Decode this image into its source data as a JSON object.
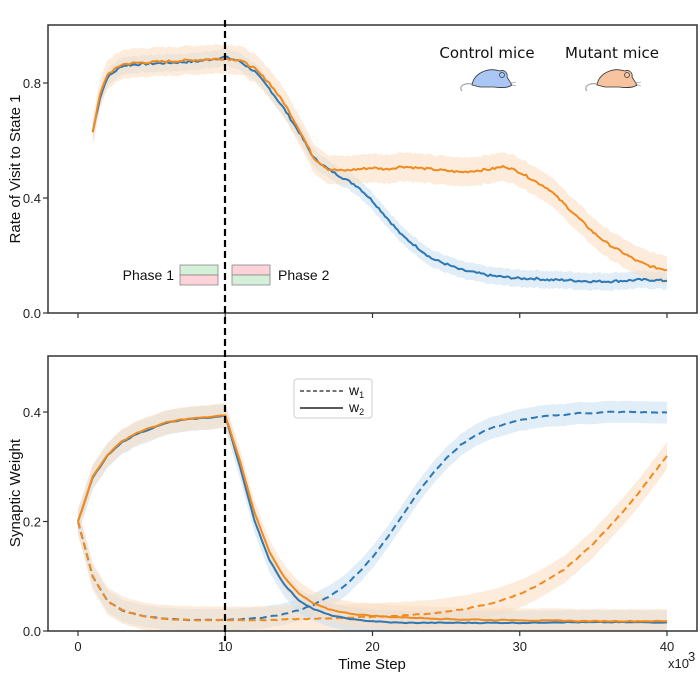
{
  "colors": {
    "control": "#2e78b4",
    "mutant": "#f08a1e",
    "control_band": "#c9def0",
    "mutant_band": "#fcdcc0",
    "phase_green": "#d4f0d8",
    "phase_red": "#fbd3d8",
    "divider": "#000000"
  },
  "chart_data": [
    {
      "type": "line",
      "panel": "top",
      "title": "",
      "xlabel": "",
      "ylabel": "Rate of Visit to State 1",
      "xlim": [
        -2,
        42
      ],
      "ylim": [
        0,
        1.0
      ],
      "yticks": [
        0.0,
        0.4,
        0.8
      ],
      "ytick_labels": [
        "0.0",
        "0.4",
        "0.8"
      ],
      "xticks": [
        0,
        10,
        20,
        30,
        40
      ],
      "grid": false,
      "vline_x": 10,
      "annotations": {
        "mice_legend": [
          {
            "label": "Control mice",
            "icon": "mouse-blue-icon"
          },
          {
            "label": "Mutant mice",
            "icon": "mouse-orange-icon"
          }
        ],
        "phase_legend": [
          {
            "label": "Phase 1",
            "top": "green",
            "bottom": "red"
          },
          {
            "label": "Phase 2",
            "top": "red",
            "bottom": "green"
          }
        ]
      },
      "x": [
        1,
        1.5,
        2,
        3,
        4,
        6,
        8,
        10,
        11,
        12,
        13,
        14,
        15,
        16,
        17,
        18,
        19,
        20,
        21,
        22,
        24,
        26,
        28,
        29,
        30,
        31,
        32,
        33,
        34,
        35,
        36,
        37,
        38,
        39,
        40
      ],
      "series": [
        {
          "name": "Control mice",
          "color_key": "control",
          "values": [
            0.63,
            0.75,
            0.82,
            0.86,
            0.865,
            0.87,
            0.875,
            0.89,
            0.875,
            0.84,
            0.78,
            0.71,
            0.63,
            0.54,
            0.5,
            0.47,
            0.44,
            0.39,
            0.33,
            0.27,
            0.19,
            0.15,
            0.13,
            0.125,
            0.12,
            0.12,
            0.115,
            0.115,
            0.112,
            0.11,
            0.11,
            0.112,
            0.115,
            0.115,
            0.112
          ],
          "band": 0.03
        },
        {
          "name": "Mutant mice",
          "color_key": "mutant",
          "values": [
            0.63,
            0.76,
            0.83,
            0.865,
            0.87,
            0.875,
            0.88,
            0.885,
            0.88,
            0.85,
            0.8,
            0.73,
            0.64,
            0.54,
            0.5,
            0.495,
            0.5,
            0.505,
            0.5,
            0.51,
            0.5,
            0.49,
            0.5,
            0.51,
            0.49,
            0.46,
            0.43,
            0.38,
            0.33,
            0.28,
            0.24,
            0.21,
            0.18,
            0.16,
            0.15
          ],
          "band": 0.05
        }
      ]
    },
    {
      "type": "line",
      "panel": "bottom",
      "title": "",
      "xlabel": "Time Step",
      "x_multiplier_label": "x10",
      "x_multiplier_exp": "3",
      "ylabel": "Synaptic Weight",
      "xlim": [
        -2,
        42
      ],
      "ylim": [
        0,
        0.5
      ],
      "yticks": [
        0.0,
        0.2,
        0.4
      ],
      "ytick_labels": [
        "0.0",
        "0.2",
        "0.4"
      ],
      "xticks": [
        0,
        10,
        20,
        30,
        40
      ],
      "xtick_labels": [
        "0",
        "10",
        "20",
        "30",
        "40"
      ],
      "grid": false,
      "vline_x": 10,
      "legend": {
        "placement": "upper-center",
        "entries": [
          {
            "label_base": "w",
            "label_sub": "1",
            "style": "dashed"
          },
          {
            "label_base": "w",
            "label_sub": "2",
            "style": "solid"
          }
        ]
      },
      "x": [
        0,
        1,
        2,
        3,
        4,
        5,
        6,
        7,
        8,
        9,
        10,
        11,
        12,
        13,
        14,
        15,
        16,
        17,
        18,
        19,
        20,
        21,
        22,
        23,
        24,
        25,
        26,
        27,
        28,
        29,
        30,
        31,
        32,
        33,
        34,
        35,
        36,
        37,
        38,
        39,
        40
      ],
      "series": [
        {
          "name": "Control w1",
          "color_key": "control",
          "style": "dashed",
          "band": 0.02,
          "values": [
            0.2,
            0.1,
            0.055,
            0.038,
            0.03,
            0.025,
            0.022,
            0.021,
            0.02,
            0.02,
            0.02,
            0.021,
            0.023,
            0.026,
            0.031,
            0.038,
            0.048,
            0.062,
            0.08,
            0.105,
            0.135,
            0.17,
            0.21,
            0.25,
            0.285,
            0.315,
            0.34,
            0.358,
            0.37,
            0.378,
            0.385,
            0.39,
            0.393,
            0.395,
            0.398,
            0.398,
            0.4,
            0.4,
            0.4,
            0.399,
            0.399
          ]
        },
        {
          "name": "Mutant w1",
          "color_key": "mutant",
          "style": "dashed",
          "band": 0.025,
          "values": [
            0.2,
            0.1,
            0.055,
            0.038,
            0.03,
            0.025,
            0.022,
            0.021,
            0.02,
            0.02,
            0.02,
            0.02,
            0.02,
            0.02,
            0.021,
            0.022,
            0.022,
            0.023,
            0.024,
            0.025,
            0.026,
            0.027,
            0.028,
            0.03,
            0.032,
            0.035,
            0.039,
            0.044,
            0.05,
            0.058,
            0.068,
            0.08,
            0.095,
            0.112,
            0.135,
            0.16,
            0.188,
            0.218,
            0.25,
            0.285,
            0.32
          ]
        },
        {
          "name": "Control w2",
          "color_key": "control",
          "style": "solid",
          "band": 0.022,
          "values": [
            0.2,
            0.28,
            0.32,
            0.345,
            0.36,
            0.37,
            0.38,
            0.385,
            0.388,
            0.39,
            0.393,
            0.3,
            0.2,
            0.13,
            0.085,
            0.056,
            0.04,
            0.03,
            0.024,
            0.02,
            0.018,
            0.016,
            0.015,
            0.015,
            0.015,
            0.015,
            0.015,
            0.015,
            0.015,
            0.015,
            0.015,
            0.015,
            0.016,
            0.016,
            0.016,
            0.016,
            0.016,
            0.016,
            0.016,
            0.016,
            0.016
          ]
        },
        {
          "name": "Mutant w2",
          "color_key": "mutant",
          "style": "solid",
          "band": 0.022,
          "values": [
            0.2,
            0.282,
            0.322,
            0.347,
            0.362,
            0.372,
            0.381,
            0.386,
            0.389,
            0.391,
            0.394,
            0.31,
            0.215,
            0.145,
            0.098,
            0.068,
            0.05,
            0.04,
            0.034,
            0.03,
            0.028,
            0.026,
            0.025,
            0.024,
            0.023,
            0.022,
            0.021,
            0.021,
            0.02,
            0.02,
            0.02,
            0.019,
            0.019,
            0.019,
            0.018,
            0.018,
            0.018,
            0.018,
            0.018,
            0.018,
            0.018
          ]
        }
      ]
    }
  ]
}
